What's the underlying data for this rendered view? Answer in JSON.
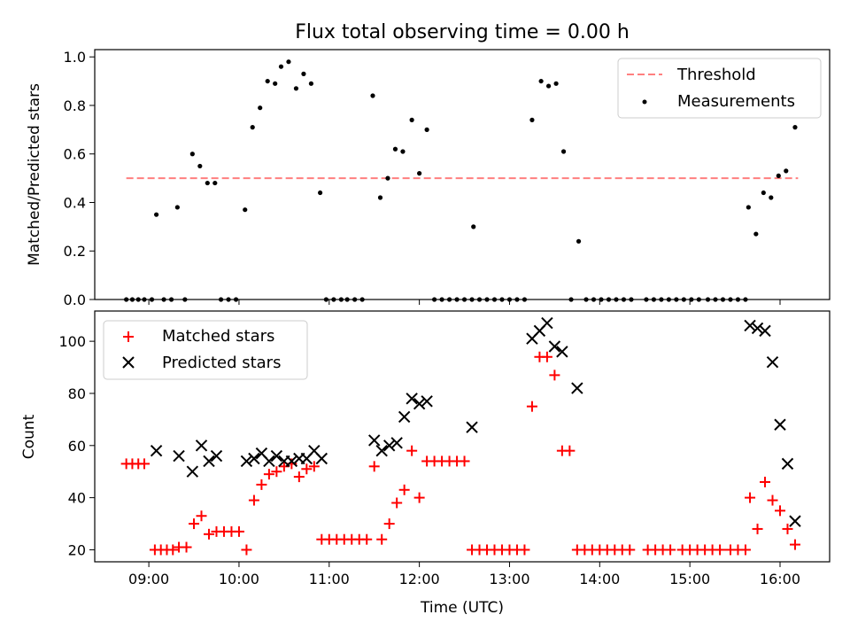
{
  "chart_data": [
    {
      "type": "scatter",
      "title": "Flux total observing time = 0.00 h",
      "xlabel": "",
      "ylabel": "Matched/Predicted stars",
      "xlim": [
        "08:24",
        "16:33"
      ],
      "ylim": [
        0,
        1.03
      ],
      "xtick_labels": [
        "09:00",
        "10:00",
        "11:00",
        "12:00",
        "13:00",
        "14:00",
        "15:00",
        "16:00"
      ],
      "ytick_labels": [
        "0.0",
        "0.2",
        "0.4",
        "0.6",
        "0.8",
        "1.0"
      ],
      "yticks": [
        0,
        0.2,
        0.4,
        0.6,
        0.8,
        1.0
      ],
      "legend_position": "top-right",
      "threshold": {
        "name": "Threshold",
        "value": 0.5,
        "x_range": [
          "08:45",
          "16:12"
        ],
        "color": "#ff7f7f",
        "style": "dashed"
      },
      "series": [
        {
          "name": "Measurements",
          "color": "#000000",
          "marker": "dot",
          "points": [
            [
              "08:45",
              0
            ],
            [
              "08:49",
              0
            ],
            [
              "08:53",
              0
            ],
            [
              "08:57",
              0
            ],
            [
              "09:02",
              0
            ],
            [
              "09:05",
              0.35
            ],
            [
              "09:10",
              0
            ],
            [
              "09:15",
              0
            ],
            [
              "09:19",
              0.38
            ],
            [
              "09:24",
              0
            ],
            [
              "09:29",
              0.6
            ],
            [
              "09:34",
              0.55
            ],
            [
              "09:39",
              0.48
            ],
            [
              "09:44",
              0.48
            ],
            [
              "09:48",
              0
            ],
            [
              "09:53",
              0
            ],
            [
              "09:58",
              0
            ],
            [
              "10:04",
              0.37
            ],
            [
              "10:09",
              0.71
            ],
            [
              "10:14",
              0.79
            ],
            [
              "10:19",
              0.9
            ],
            [
              "10:24",
              0.89
            ],
            [
              "10:28",
              0.96
            ],
            [
              "10:33",
              0.98
            ],
            [
              "10:38",
              0.87
            ],
            [
              "10:43",
              0.93
            ],
            [
              "10:48",
              0.89
            ],
            [
              "10:54",
              0.44
            ],
            [
              "10:58",
              0
            ],
            [
              "11:03",
              0
            ],
            [
              "11:08",
              0
            ],
            [
              "11:12",
              0
            ],
            [
              "11:17",
              0
            ],
            [
              "11:22",
              0
            ],
            [
              "11:29",
              0.84
            ],
            [
              "11:34",
              0.42
            ],
            [
              "11:39",
              0.5
            ],
            [
              "11:44",
              0.62
            ],
            [
              "11:49",
              0.61
            ],
            [
              "11:55",
              0.74
            ],
            [
              "12:00",
              0.52
            ],
            [
              "12:05",
              0.7
            ],
            [
              "12:10",
              0
            ],
            [
              "12:15",
              0
            ],
            [
              "12:20",
              0
            ],
            [
              "12:25",
              0
            ],
            [
              "12:30",
              0
            ],
            [
              "12:35",
              0
            ],
            [
              "12:36",
              0.3
            ],
            [
              "12:40",
              0
            ],
            [
              "12:45",
              0
            ],
            [
              "12:50",
              0
            ],
            [
              "12:55",
              0
            ],
            [
              "13:00",
              0
            ],
            [
              "13:05",
              0
            ],
            [
              "13:10",
              0
            ],
            [
              "13:15",
              0.74
            ],
            [
              "13:21",
              0.9
            ],
            [
              "13:26",
              0.88
            ],
            [
              "13:31",
              0.89
            ],
            [
              "13:36",
              0.61
            ],
            [
              "13:41",
              0
            ],
            [
              "13:46",
              0.24
            ],
            [
              "13:51",
              0
            ],
            [
              "13:56",
              0
            ],
            [
              "14:01",
              0
            ],
            [
              "14:06",
              0
            ],
            [
              "14:11",
              0
            ],
            [
              "14:16",
              0
            ],
            [
              "14:21",
              0
            ],
            [
              "14:31",
              0
            ],
            [
              "14:36",
              0
            ],
            [
              "14:41",
              0
            ],
            [
              "14:46",
              0
            ],
            [
              "14:51",
              0
            ],
            [
              "14:56",
              0
            ],
            [
              "15:01",
              0
            ],
            [
              "15:06",
              0
            ],
            [
              "15:12",
              0
            ],
            [
              "15:17",
              0
            ],
            [
              "15:22",
              0
            ],
            [
              "15:27",
              0
            ],
            [
              "15:32",
              0
            ],
            [
              "15:37",
              0
            ],
            [
              "15:39",
              0.38
            ],
            [
              "15:44",
              0.27
            ],
            [
              "15:49",
              0.44
            ],
            [
              "15:54",
              0.42
            ],
            [
              "15:59",
              0.51
            ],
            [
              "16:04",
              0.53
            ],
            [
              "16:10",
              0.71
            ]
          ]
        }
      ]
    },
    {
      "type": "scatter",
      "title": "",
      "xlabel": "Time (UTC)",
      "ylabel": "Count",
      "xlim": [
        "08:24",
        "16:33"
      ],
      "ylim": [
        15.4,
        111.6
      ],
      "xtick_labels": [
        "09:00",
        "10:00",
        "11:00",
        "12:00",
        "13:00",
        "14:00",
        "15:00",
        "16:00"
      ],
      "ytick_labels": [
        "20",
        "40",
        "60",
        "80",
        "100"
      ],
      "yticks": [
        20,
        40,
        60,
        80,
        100
      ],
      "legend_position": "top-left",
      "series": [
        {
          "name": "Matched stars",
          "color": "#ff0000",
          "marker": "plus",
          "points": [
            [
              "08:45",
              53
            ],
            [
              "08:49",
              53
            ],
            [
              "08:53",
              53
            ],
            [
              "08:57",
              53
            ],
            [
              "09:04",
              20
            ],
            [
              "09:08",
              20
            ],
            [
              "09:12",
              20
            ],
            [
              "09:16",
              20
            ],
            [
              "09:20",
              21
            ],
            [
              "09:25",
              21
            ],
            [
              "09:30",
              30
            ],
            [
              "09:35",
              33
            ],
            [
              "09:40",
              26
            ],
            [
              "09:45",
              27
            ],
            [
              "09:50",
              27
            ],
            [
              "09:55",
              27
            ],
            [
              "10:00",
              27
            ],
            [
              "10:05",
              20
            ],
            [
              "10:10",
              39
            ],
            [
              "10:15",
              45
            ],
            [
              "10:20",
              49
            ],
            [
              "10:25",
              50
            ],
            [
              "10:30",
              52
            ],
            [
              "10:35",
              53
            ],
            [
              "10:40",
              48
            ],
            [
              "10:45",
              51
            ],
            [
              "10:50",
              52
            ],
            [
              "10:55",
              24
            ],
            [
              "11:00",
              24
            ],
            [
              "11:05",
              24
            ],
            [
              "11:10",
              24
            ],
            [
              "11:15",
              24
            ],
            [
              "11:20",
              24
            ],
            [
              "11:25",
              24
            ],
            [
              "11:30",
              52
            ],
            [
              "11:35",
              24
            ],
            [
              "11:40",
              30
            ],
            [
              "11:45",
              38
            ],
            [
              "11:50",
              43
            ],
            [
              "11:55",
              58
            ],
            [
              "12:00",
              40
            ],
            [
              "12:05",
              54
            ],
            [
              "12:10",
              54
            ],
            [
              "12:15",
              54
            ],
            [
              "12:20",
              54
            ],
            [
              "12:25",
              54
            ],
            [
              "12:30",
              54
            ],
            [
              "12:35",
              20
            ],
            [
              "12:40",
              20
            ],
            [
              "12:45",
              20
            ],
            [
              "12:50",
              20
            ],
            [
              "12:55",
              20
            ],
            [
              "13:00",
              20
            ],
            [
              "13:05",
              20
            ],
            [
              "13:10",
              20
            ],
            [
              "13:15",
              75
            ],
            [
              "13:20",
              94
            ],
            [
              "13:25",
              94
            ],
            [
              "13:30",
              87
            ],
            [
              "13:35",
              58
            ],
            [
              "13:40",
              58
            ],
            [
              "13:45",
              20
            ],
            [
              "13:50",
              20
            ],
            [
              "13:55",
              20
            ],
            [
              "14:00",
              20
            ],
            [
              "14:05",
              20
            ],
            [
              "14:10",
              20
            ],
            [
              "14:15",
              20
            ],
            [
              "14:20",
              20
            ],
            [
              "14:32",
              20
            ],
            [
              "14:37",
              20
            ],
            [
              "14:42",
              20
            ],
            [
              "14:47",
              20
            ],
            [
              "14:55",
              20
            ],
            [
              "15:00",
              20
            ],
            [
              "15:05",
              20
            ],
            [
              "15:10",
              20
            ],
            [
              "15:15",
              20
            ],
            [
              "15:20",
              20
            ],
            [
              "15:27",
              20
            ],
            [
              "15:32",
              20
            ],
            [
              "15:37",
              20
            ],
            [
              "15:40",
              40
            ],
            [
              "15:45",
              28
            ],
            [
              "15:50",
              46
            ],
            [
              "15:55",
              39
            ],
            [
              "16:00",
              35
            ],
            [
              "16:05",
              28
            ],
            [
              "16:10",
              22
            ]
          ]
        },
        {
          "name": "Predicted stars",
          "color": "#000000",
          "marker": "x",
          "points": [
            [
              "09:05",
              58
            ],
            [
              "09:20",
              56
            ],
            [
              "09:29",
              50
            ],
            [
              "09:35",
              60
            ],
            [
              "09:40",
              54
            ],
            [
              "09:45",
              56
            ],
            [
              "10:05",
              54
            ],
            [
              "10:10",
              55
            ],
            [
              "10:15",
              57
            ],
            [
              "10:20",
              54
            ],
            [
              "10:25",
              56
            ],
            [
              "10:30",
              54
            ],
            [
              "10:35",
              54
            ],
            [
              "10:40",
              55
            ],
            [
              "10:45",
              55
            ],
            [
              "10:50",
              58
            ],
            [
              "10:55",
              55
            ],
            [
              "11:30",
              62
            ],
            [
              "11:35",
              58
            ],
            [
              "11:40",
              60
            ],
            [
              "11:45",
              61
            ],
            [
              "11:50",
              71
            ],
            [
              "11:55",
              78
            ],
            [
              "12:00",
              76
            ],
            [
              "12:05",
              77
            ],
            [
              "12:35",
              67
            ],
            [
              "13:15",
              101
            ],
            [
              "13:20",
              104
            ],
            [
              "13:25",
              107
            ],
            [
              "13:30",
              98
            ],
            [
              "13:35",
              96
            ],
            [
              "13:45",
              82
            ],
            [
              "15:40",
              106
            ],
            [
              "15:45",
              105
            ],
            [
              "15:50",
              104
            ],
            [
              "15:55",
              92
            ],
            [
              "16:00",
              68
            ],
            [
              "16:05",
              53
            ],
            [
              "16:10",
              31
            ]
          ]
        }
      ]
    }
  ]
}
